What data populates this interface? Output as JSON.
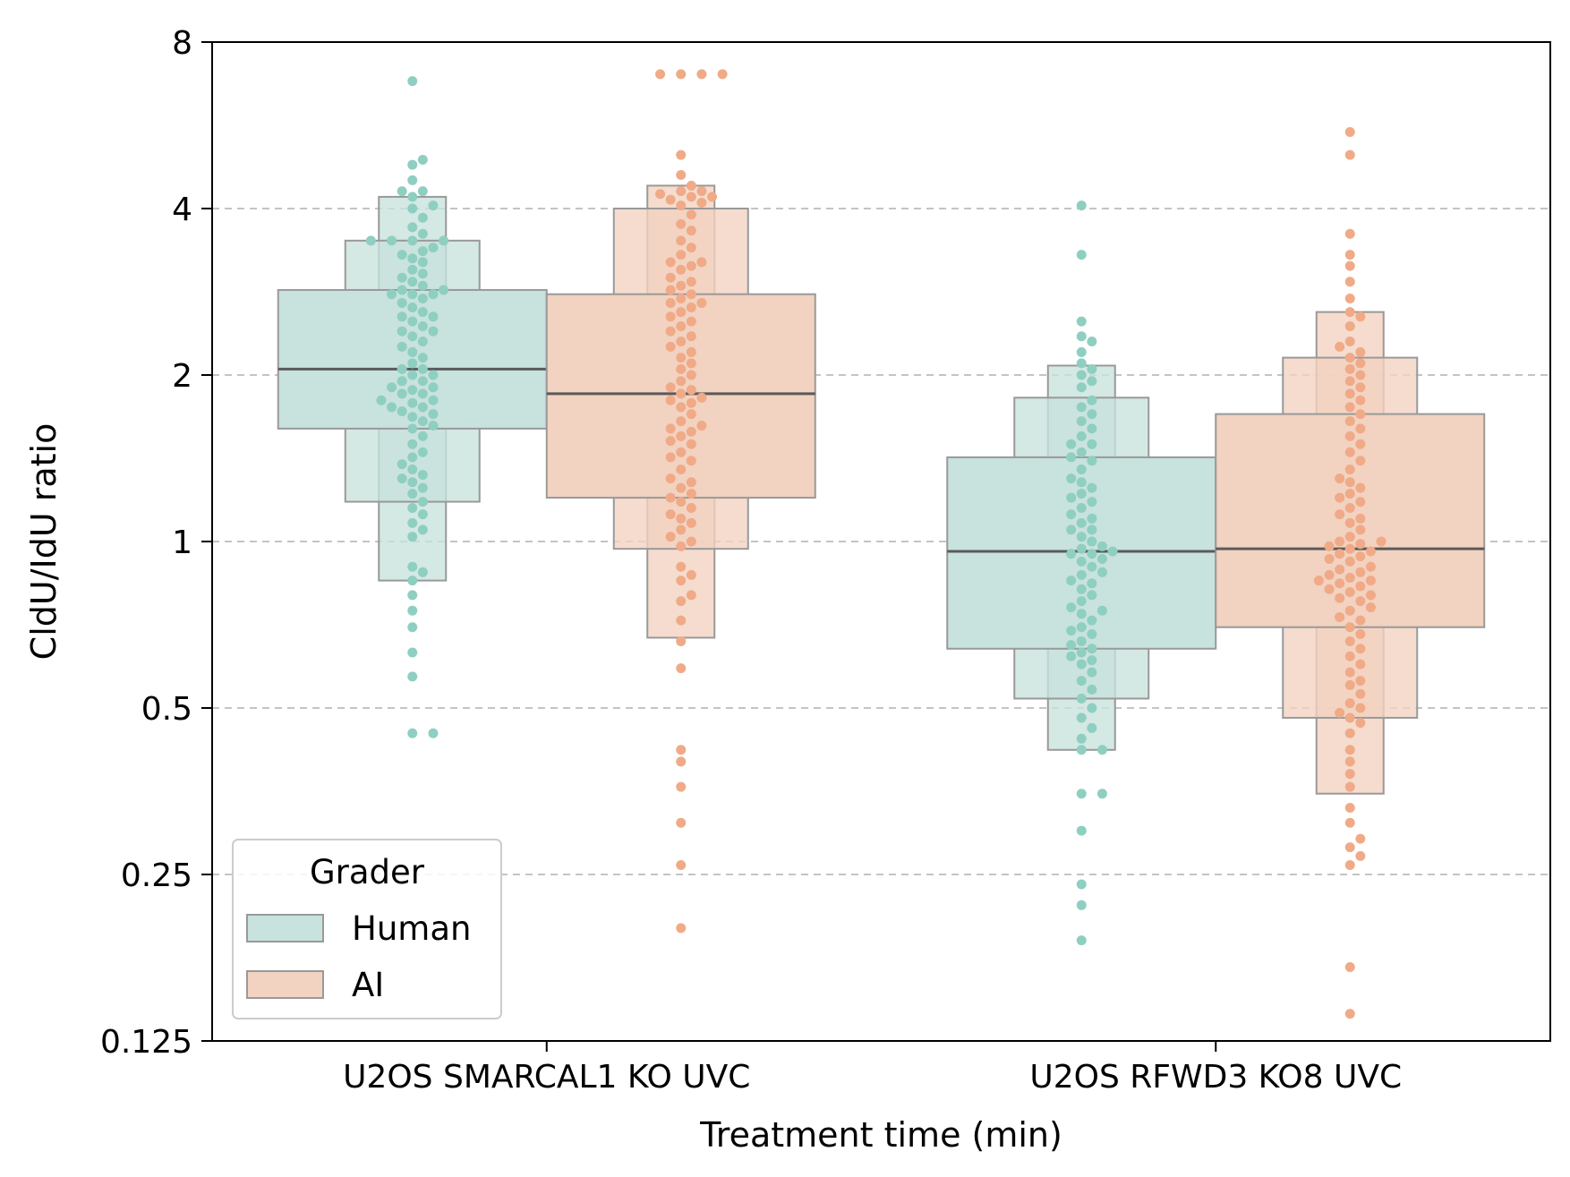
{
  "chart_data": {
    "type": "boxen",
    "xlabel": "Treatment time (min)",
    "ylabel": "CldU/IdU ratio",
    "yscale": "log2",
    "ylim": [
      0.125,
      8
    ],
    "yticks": [
      0.125,
      0.25,
      0.5,
      1,
      2,
      4,
      8
    ],
    "ytick_labels": [
      "0.125",
      "0.25",
      "0.5",
      "1",
      "2",
      "4",
      "8"
    ],
    "grid": "horizontal dashed",
    "categories": [
      "U2OS SMARCAL1 KO UVC",
      "U2OS RFWD3 KO8 UVC"
    ],
    "legend": {
      "title": "Grader",
      "position": "lower-left",
      "items": [
        {
          "label": "Human",
          "color": "#c8e2dd",
          "point_color": "#8ecfc1"
        },
        {
          "label": "AI",
          "color": "#f2d2c0",
          "point_color": "#f0aa88"
        }
      ]
    },
    "series": [
      {
        "name": "Human",
        "boxes": [
          {
            "category": "U2OS SMARCAL1 KO UVC",
            "median": 2.05,
            "levels": [
              [
                1.6,
                2.85
              ],
              [
                1.18,
                3.5
              ],
              [
                0.85,
                4.2
              ]
            ],
            "points": [
              6.8,
              4.9,
              4.8,
              4.5,
              4.3,
              4.3,
              4.2,
              4.05,
              4.0,
              3.85,
              3.7,
              3.6,
              3.5,
              3.5,
              3.5,
              3.5,
              3.4,
              3.35,
              3.3,
              3.25,
              3.2,
              3.1,
              3.05,
              3.0,
              2.95,
              2.9,
              2.85,
              2.85,
              2.8,
              2.8,
              2.8,
              2.75,
              2.7,
              2.65,
              2.6,
              2.55,
              2.55,
              2.5,
              2.45,
              2.4,
              2.4,
              2.35,
              2.3,
              2.25,
              2.2,
              2.15,
              2.1,
              2.05,
              2.05,
              2.0,
              2.0,
              1.95,
              1.95,
              1.9,
              1.9,
              1.88,
              1.85,
              1.85,
              1.8,
              1.8,
              1.78,
              1.75,
              1.75,
              1.72,
              1.7,
              1.68,
              1.65,
              1.62,
              1.6,
              1.55,
              1.5,
              1.45,
              1.42,
              1.38,
              1.35,
              1.32,
              1.3,
              1.28,
              1.25,
              1.22,
              1.18,
              1.15,
              1.12,
              1.08,
              1.05,
              1.02,
              0.9,
              0.88,
              0.85,
              0.8,
              0.75,
              0.7,
              0.63,
              0.57,
              0.45,
              0.45
            ]
          },
          {
            "category": "U2OS RFWD3 KO8 UVC",
            "median": 0.96,
            "levels": [
              [
                0.64,
                1.42
              ],
              [
                0.52,
                1.82
              ],
              [
                0.42,
                2.08
              ]
            ],
            "points": [
              4.05,
              3.3,
              2.5,
              2.35,
              2.3,
              2.2,
              2.1,
              2.05,
              2.0,
              1.95,
              1.9,
              1.8,
              1.75,
              1.7,
              1.65,
              1.6,
              1.55,
              1.5,
              1.5,
              1.45,
              1.42,
              1.4,
              1.35,
              1.3,
              1.28,
              1.25,
              1.22,
              1.2,
              1.18,
              1.15,
              1.12,
              1.1,
              1.08,
              1.05,
              1.05,
              1.02,
              1.0,
              0.98,
              0.97,
              0.96,
              0.95,
              0.95,
              0.93,
              0.92,
              0.9,
              0.88,
              0.87,
              0.85,
              0.84,
              0.82,
              0.8,
              0.78,
              0.76,
              0.75,
              0.74,
              0.72,
              0.7,
              0.69,
              0.68,
              0.66,
              0.65,
              0.64,
              0.63,
              0.62,
              0.61,
              0.6,
              0.58,
              0.56,
              0.54,
              0.52,
              0.5,
              0.48,
              0.46,
              0.44,
              0.42,
              0.42,
              0.35,
              0.35,
              0.3,
              0.24,
              0.22,
              0.19
            ]
          }
        ]
      },
      {
        "name": "AI",
        "boxes": [
          {
            "category": "U2OS SMARCAL1 KO UVC",
            "median": 1.85,
            "levels": [
              [
                1.2,
                2.8
              ],
              [
                0.97,
                4.0
              ],
              [
                0.67,
                4.4
              ]
            ],
            "points": [
              7.0,
              7.0,
              7.0,
              7.0,
              5.0,
              4.6,
              4.4,
              4.3,
              4.3,
              4.25,
              4.2,
              4.2,
              4.15,
              4.1,
              4.05,
              3.9,
              3.75,
              3.65,
              3.5,
              3.4,
              3.3,
              3.2,
              3.2,
              3.15,
              3.1,
              3.0,
              2.95,
              2.9,
              2.85,
              2.8,
              2.75,
              2.7,
              2.7,
              2.65,
              2.6,
              2.55,
              2.5,
              2.45,
              2.4,
              2.35,
              2.3,
              2.25,
              2.2,
              2.15,
              2.1,
              2.05,
              2.0,
              1.95,
              1.9,
              1.88,
              1.85,
              1.82,
              1.8,
              1.78,
              1.75,
              1.7,
              1.65,
              1.62,
              1.6,
              1.58,
              1.55,
              1.52,
              1.5,
              1.45,
              1.42,
              1.4,
              1.35,
              1.3,
              1.28,
              1.25,
              1.22,
              1.2,
              1.18,
              1.15,
              1.12,
              1.1,
              1.08,
              1.05,
              1.02,
              1.0,
              0.98,
              0.9,
              0.87,
              0.85,
              0.8,
              0.78,
              0.72,
              0.66,
              0.59,
              0.42,
              0.4,
              0.36,
              0.31,
              0.26,
              0.2
            ]
          },
          {
            "category": "U2OS RFWD3 KO8 UVC",
            "median": 0.97,
            "levels": [
              [
                0.7,
                1.7
              ],
              [
                0.48,
                2.15
              ],
              [
                0.35,
                2.6
              ]
            ],
            "points": [
              5.5,
              5.0,
              3.6,
              3.3,
              3.15,
              2.95,
              2.75,
              2.6,
              2.55,
              2.45,
              2.3,
              2.25,
              2.2,
              2.15,
              2.1,
              2.05,
              2.0,
              1.95,
              1.9,
              1.85,
              1.8,
              1.75,
              1.7,
              1.65,
              1.6,
              1.55,
              1.5,
              1.45,
              1.4,
              1.35,
              1.3,
              1.28,
              1.25,
              1.22,
              1.2,
              1.18,
              1.15,
              1.12,
              1.1,
              1.08,
              1.05,
              1.02,
              1.0,
              1.0,
              0.99,
              0.98,
              0.97,
              0.96,
              0.95,
              0.94,
              0.93,
              0.92,
              0.9,
              0.89,
              0.88,
              0.87,
              0.86,
              0.85,
              0.85,
              0.84,
              0.83,
              0.82,
              0.81,
              0.8,
              0.79,
              0.78,
              0.76,
              0.75,
              0.73,
              0.72,
              0.7,
              0.68,
              0.66,
              0.64,
              0.62,
              0.6,
              0.58,
              0.56,
              0.55,
              0.53,
              0.51,
              0.5,
              0.49,
              0.48,
              0.47,
              0.45,
              0.42,
              0.4,
              0.38,
              0.36,
              0.33,
              0.31,
              0.29,
              0.28,
              0.27,
              0.26,
              0.17,
              0.14
            ]
          }
        ]
      }
    ]
  }
}
